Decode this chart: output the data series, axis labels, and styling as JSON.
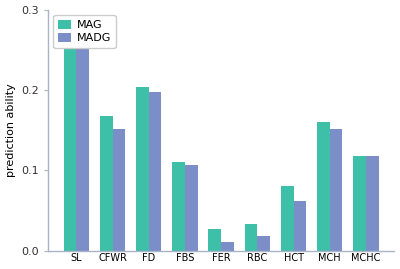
{
  "categories": [
    "SL",
    "CFWR",
    "FD",
    "FBS",
    "FER",
    "RBC",
    "HCT",
    "MCH",
    "MCHC"
  ],
  "MAG": [
    0.255,
    0.167,
    0.204,
    0.11,
    0.027,
    0.033,
    0.08,
    0.16,
    0.118
  ],
  "MADG": [
    0.254,
    0.152,
    0.197,
    0.106,
    0.011,
    0.018,
    0.062,
    0.152,
    0.118
  ],
  "MAG_color": "#3dbfa8",
  "MADG_color": "#7b8ec8",
  "ylabel": "prediction ability",
  "ylim": [
    0,
    0.3
  ],
  "yticks": [
    0.0,
    0.1,
    0.2,
    0.3
  ],
  "bar_width": 0.35,
  "legend_labels": [
    "MAG",
    "MADG"
  ],
  "background_color": "#ffffff",
  "edge_color": "none",
  "spine_color": "#aab4c8",
  "tick_color": "#aab4c8"
}
